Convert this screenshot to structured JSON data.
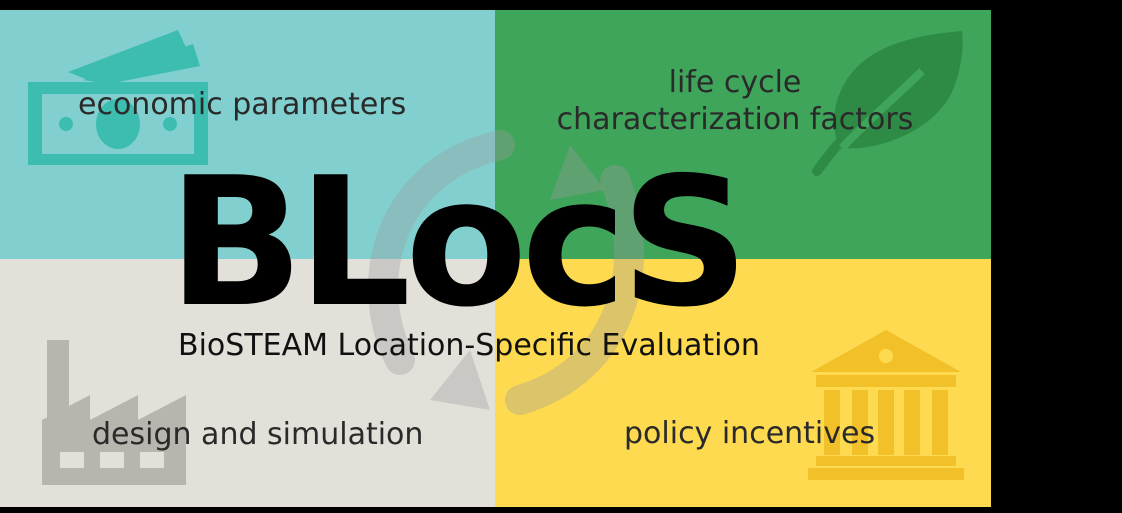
{
  "title": "BLocS",
  "subtitle": "BioSTEAM Location-Specific Evaluation",
  "quadrants": {
    "top_left": {
      "label": "economic parameters",
      "icon": "money-icon",
      "color": "#81d0cf"
    },
    "top_right": {
      "label_line1": "life cycle",
      "label_line2": "characterization factors",
      "icon": "leaf-icon",
      "color": "#3fa55a"
    },
    "bottom_left": {
      "label": "design and simulation",
      "icon": "factory-icon",
      "color": "#e3e0da"
    },
    "bottom_right": {
      "label": "policy incentives",
      "icon": "government-building-icon",
      "color": "#fdda4f"
    }
  },
  "center_icon": "cycle-arrows-icon"
}
